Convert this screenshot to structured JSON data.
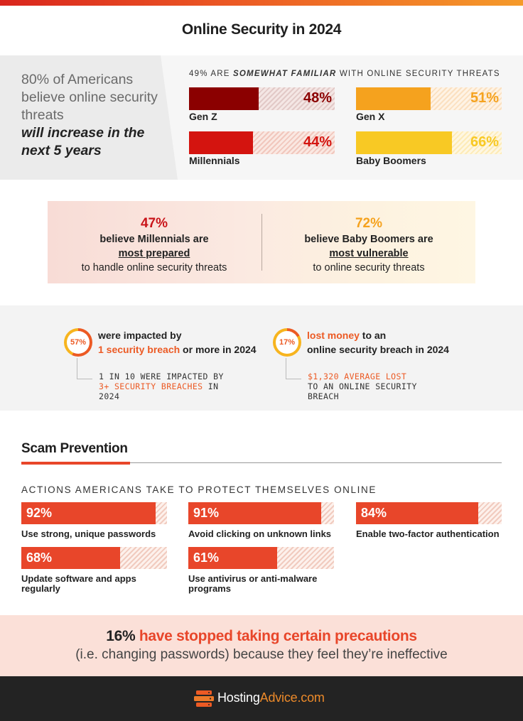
{
  "title": "Online Security in 2024",
  "intro": {
    "line1": "80% of Americans believe online security threats",
    "line2": "will increase in the next 5 years"
  },
  "familiar": {
    "prefix": "49% ARE ",
    "emph": "SOMEWHAT FAMILIAR",
    "suffix": " WITH ONLINE SECURITY THREATS"
  },
  "chart_data": [
    {
      "type": "bar",
      "categories": [
        "Gen Z",
        "Millennials",
        "Gen X",
        "Baby Boomers"
      ],
      "values": [
        48,
        44,
        51,
        66
      ],
      "value_labels": [
        "48%",
        "44%",
        "51%",
        "66%"
      ],
      "colors": [
        "#8b0000",
        "#d4140f",
        "#f5a21e",
        "#f8c924"
      ],
      "ylim": [
        0,
        100
      ]
    },
    {
      "type": "bar",
      "title": "ACTIONS AMERICANS TAKE TO PROTECT THEMSELVES ONLINE",
      "categories": [
        "Use strong, unique passwords",
        "Avoid clicking on unknown links",
        "Enable two-factor authentication",
        "Update software and apps regularly",
        "Use antivirus or anti-malware programs"
      ],
      "values": [
        92,
        91,
        84,
        68,
        61
      ],
      "value_labels": [
        "92%",
        "91%",
        "84%",
        "68%",
        "61%"
      ],
      "color": "#e8462a",
      "ylim": [
        0,
        100
      ]
    }
  ],
  "prepared": {
    "left": {
      "pct": "47%",
      "l1": "believe Millennials are",
      "l2": "most prepared",
      "l3": "to handle online security threats"
    },
    "right": {
      "pct": "72%",
      "l1": "believe Baby Boomers are",
      "l2": "most vulnerable",
      "l3": "to online security threats"
    },
    "left_color": "#c9141a",
    "right_color": "#f5a21e"
  },
  "impact": {
    "left": {
      "ring": "57%",
      "ring_value": 57,
      "h1": "were impacted by",
      "h2o": "1 security breach",
      "h2": " or more in 2024",
      "s1": "1 IN 10 WERE IMPACTED BY",
      "s2o": "3+ SECURITY BREACHES",
      "s2": " IN",
      "s3": "2024"
    },
    "right": {
      "ring": "17%",
      "ring_value": 17,
      "h1o": "lost money",
      "h1": " to an",
      "h2": "online security breach in 2024",
      "s1o": "$1,320 AVERAGE LOST",
      "s2": "TO AN ONLINE SECURITY",
      "s3": "BREACH"
    }
  },
  "scam": {
    "title": "Scam Prevention",
    "subtitle": "ACTIONS AMERICANS TAKE TO PROTECT THEMSELVES ONLINE",
    "labels_wrapped": {
      "item3": [
        "Update software and apps",
        "regularly"
      ],
      "item4": [
        "Use antivirus or anti-malware",
        "programs"
      ]
    }
  },
  "precautions": {
    "num": "16%",
    "rest": " have stopped taking certain precautions",
    "line2": "(i.e. changing passwords) because they feel they’re ineffective"
  },
  "footer": {
    "brand_a": "Hosting",
    "brand_b": "Advice.com",
    "logo_icon": "server-stack-icon"
  }
}
